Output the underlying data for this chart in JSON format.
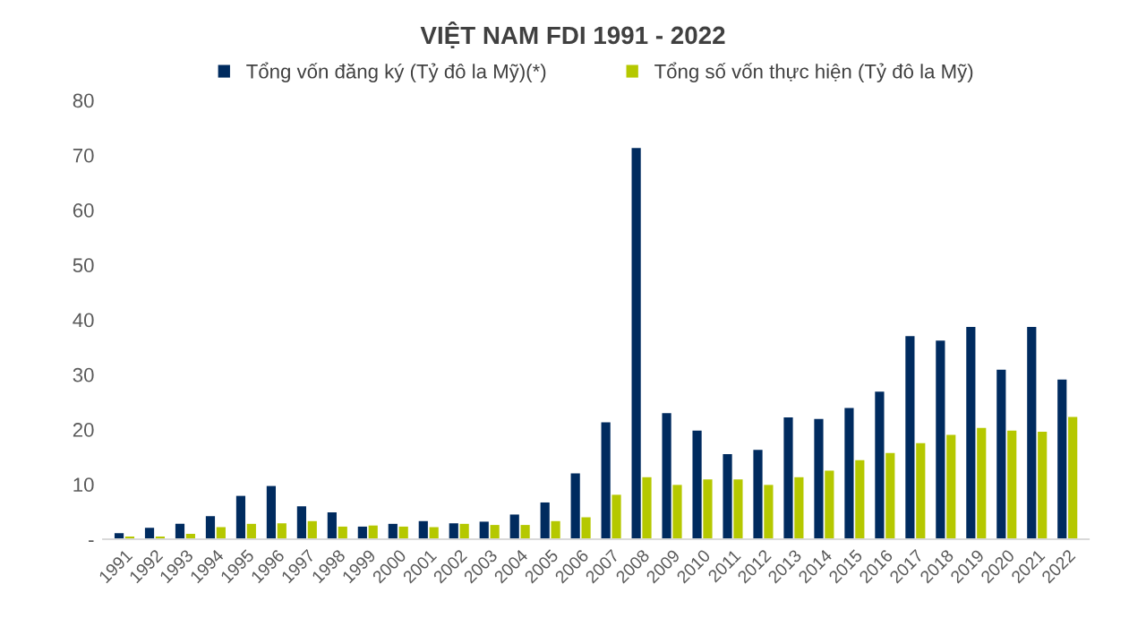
{
  "chart_data": {
    "type": "bar",
    "title": "VIỆT NAM FDI 1991 - 2022",
    "categories": [
      "1991",
      "1992",
      "1993",
      "1994",
      "1995",
      "1996",
      "1997",
      "1998",
      "1999",
      "2000",
      "2001",
      "2002",
      "2003",
      "2004",
      "2005",
      "2006",
      "2007",
      "2008",
      "2009",
      "2010",
      "2011",
      "2012",
      "2013",
      "2014",
      "2015",
      "2016",
      "2017",
      "2018",
      "2019",
      "2020",
      "2021",
      "2022"
    ],
    "series": [
      {
        "name": "Tổng vốn đăng ký (Tỷ đô la Mỹ)(*)",
        "color": "#002b5f",
        "values": [
          1.1,
          2.1,
          2.8,
          4.2,
          7.9,
          9.7,
          6.0,
          4.9,
          2.3,
          2.8,
          3.3,
          2.9,
          3.2,
          4.5,
          6.7,
          12.0,
          21.3,
          71.3,
          23.0,
          19.8,
          15.5,
          16.3,
          22.2,
          21.9,
          23.9,
          26.9,
          37.0,
          36.2,
          38.7,
          30.9,
          38.7,
          29.1
        ]
      },
      {
        "name": "Tổng số vốn thực hiện (Tỷ đô la Mỹ)",
        "color": "#b5c800",
        "values": [
          0.5,
          0.5,
          1.0,
          2.2,
          2.8,
          2.9,
          3.3,
          2.3,
          2.5,
          2.3,
          2.2,
          2.8,
          2.6,
          2.6,
          3.3,
          4.0,
          8.1,
          11.3,
          9.9,
          10.9,
          10.9,
          9.9,
          11.3,
          12.5,
          14.4,
          15.7,
          17.5,
          19.0,
          20.3,
          19.8,
          19.6,
          22.3
        ]
      }
    ],
    "ylim": [
      0,
      80
    ],
    "yticks": [
      {
        "value": 0,
        "label": "-"
      },
      10,
      20,
      30,
      40,
      50,
      60,
      70,
      80
    ],
    "grid": false,
    "legend": "top"
  }
}
